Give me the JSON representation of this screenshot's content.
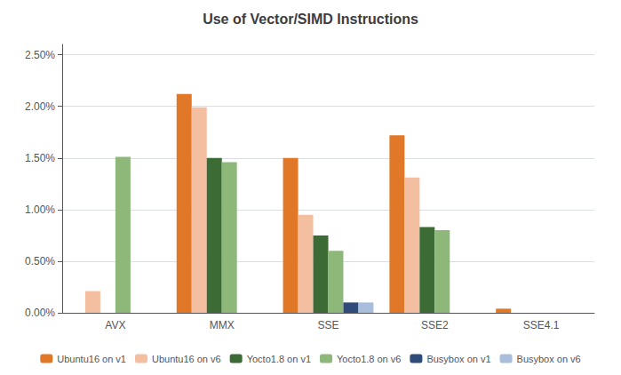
{
  "chart_data": {
    "type": "bar",
    "title": "Use of Vector/SIMD Instructions",
    "categories": [
      "AVX",
      "MMX",
      "SSE",
      "SSE2",
      "SSE4.1"
    ],
    "series": [
      {
        "name": "Ubuntu16 on v1",
        "color": "#E07828",
        "values": [
          0.0,
          0.0212,
          0.015,
          0.0172,
          0.0004
        ]
      },
      {
        "name": "Ubuntu16 on v6",
        "color": "#F4BFA0",
        "values": [
          0.0021,
          0.0199,
          0.0095,
          0.0131,
          0.0
        ]
      },
      {
        "name": "Yocto1.8 on v1",
        "color": "#3D6B35",
        "values": [
          0.0,
          0.015,
          0.0075,
          0.0083,
          0.0
        ]
      },
      {
        "name": "Yocto1.8 on v6",
        "color": "#8DB87A",
        "values": [
          0.0151,
          0.0146,
          0.006,
          0.008,
          0.0
        ]
      },
      {
        "name": "Busybox on v1",
        "color": "#2E4B7A",
        "values": [
          0.0,
          0.0,
          0.001,
          0.0,
          0.0
        ]
      },
      {
        "name": "Busybox on v6",
        "color": "#A8BEDC",
        "values": [
          0.0,
          0.0,
          0.001,
          0.0,
          0.0
        ]
      }
    ],
    "ylim": [
      0,
      0.026
    ],
    "yticks": [
      {
        "value": 0.0,
        "label": "0.00%"
      },
      {
        "value": 0.005,
        "label": "0.50%"
      },
      {
        "value": 0.01,
        "label": "1.00%"
      },
      {
        "value": 0.015,
        "label": "1.50%"
      },
      {
        "value": 0.02,
        "label": "2.00%"
      },
      {
        "value": 0.025,
        "label": "2.50%"
      }
    ],
    "grid": true,
    "legend": "bottom"
  }
}
